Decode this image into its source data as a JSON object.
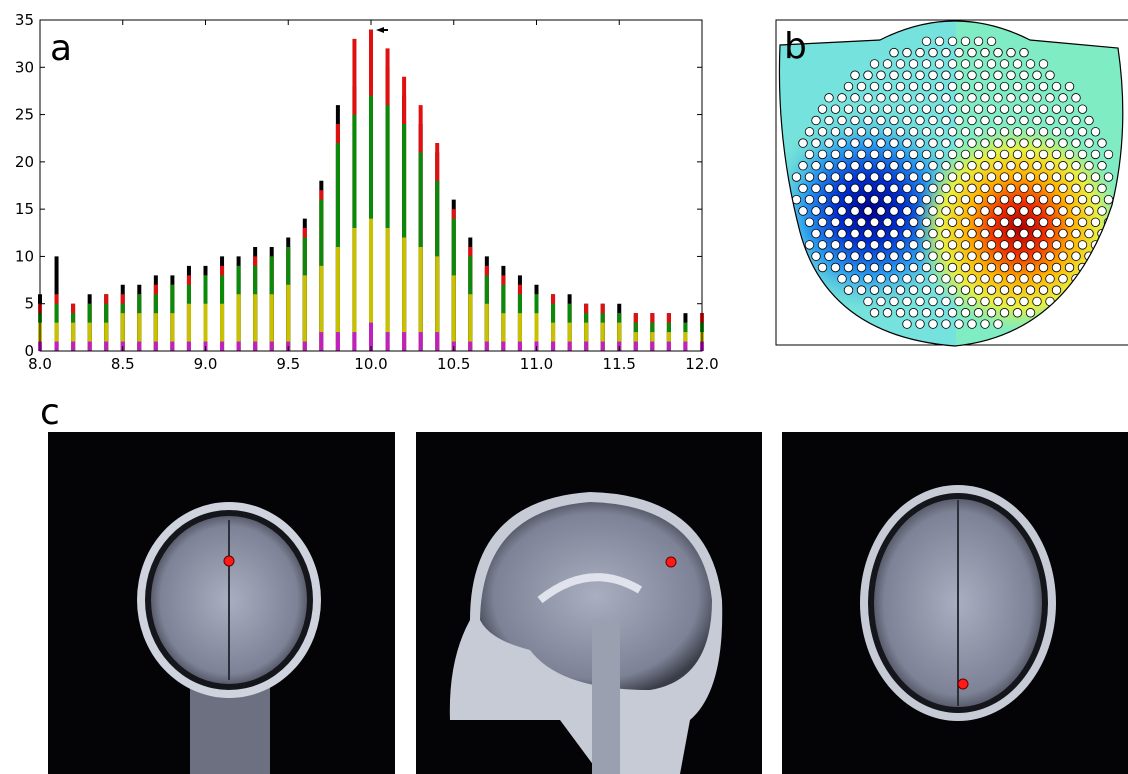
{
  "chart_data": {
    "type": "spectrum",
    "x": [
      8.0,
      8.1,
      8.2,
      8.3,
      8.4,
      8.5,
      8.6,
      8.7,
      8.8,
      8.9,
      9.0,
      9.1,
      9.2,
      9.3,
      9.4,
      9.5,
      9.6,
      9.7,
      9.8,
      9.9,
      10.0,
      10.1,
      10.2,
      10.3,
      10.4,
      10.5,
      10.6,
      10.7,
      10.8,
      10.9,
      11.0,
      11.1,
      11.2,
      11.3,
      11.4,
      11.5,
      11.6,
      11.7,
      11.8,
      11.9,
      12.0
    ],
    "series": [
      {
        "color": "#000000",
        "values": [
          6,
          10,
          5,
          6,
          6,
          7,
          7,
          8,
          8,
          9,
          9,
          10,
          10,
          11,
          11,
          12,
          14,
          18,
          26,
          28,
          31,
          30,
          27,
          24,
          21,
          16,
          12,
          10,
          9,
          8,
          7,
          6,
          6,
          5,
          5,
          5,
          4,
          4,
          4,
          4,
          4
        ]
      },
      {
        "color": "#e01010",
        "values": [
          5,
          6,
          5,
          5,
          6,
          6,
          6,
          7,
          7,
          8,
          8,
          9,
          9,
          10,
          10,
          11,
          13,
          17,
          24,
          33,
          34,
          32,
          29,
          26,
          22,
          15,
          11,
          9,
          8,
          7,
          6,
          6,
          5,
          5,
          5,
          4,
          4,
          4,
          4,
          3,
          4
        ]
      },
      {
        "color": "#0a8a0a",
        "values": [
          4,
          5,
          4,
          5,
          5,
          5,
          6,
          6,
          7,
          7,
          8,
          8,
          9,
          9,
          10,
          11,
          12,
          16,
          22,
          25,
          27,
          26,
          24,
          21,
          18,
          14,
          10,
          8,
          7,
          6,
          6,
          5,
          5,
          4,
          4,
          4,
          3,
          3,
          3,
          3,
          3
        ]
      },
      {
        "color": "#c8c000",
        "values": [
          3,
          3,
          3,
          3,
          3,
          4,
          4,
          4,
          4,
          5,
          5,
          5,
          6,
          6,
          6,
          7,
          8,
          9,
          11,
          13,
          14,
          13,
          12,
          11,
          10,
          8,
          6,
          5,
          4,
          4,
          4,
          3,
          3,
          3,
          3,
          3,
          2,
          2,
          2,
          2,
          2
        ]
      },
      {
        "color": "#c020c0",
        "values": [
          1,
          1,
          1,
          1,
          1,
          1,
          1,
          1,
          1,
          1,
          1,
          1,
          1,
          1,
          1,
          1,
          1,
          2,
          2,
          2,
          3,
          2,
          2,
          2,
          2,
          1,
          1,
          1,
          1,
          1,
          1,
          1,
          1,
          1,
          1,
          1,
          1,
          1,
          1,
          1,
          1
        ]
      }
    ],
    "xlim": [
      8.0,
      12.0
    ],
    "ylim": [
      0,
      35
    ],
    "xticks": [
      {
        "value": 8.0,
        "label": "8.0"
      },
      {
        "value": 8.5,
        "label": "8.5"
      },
      {
        "value": 9.0,
        "label": "9.0"
      },
      {
        "value": 9.5,
        "label": "9.5"
      },
      {
        "value": 10.0,
        "label": "10.0"
      },
      {
        "value": 10.5,
        "label": "10.5"
      },
      {
        "value": 11.0,
        "label": "11.0"
      },
      {
        "value": 11.5,
        "label": "11.5"
      },
      {
        "value": 12.0,
        "label": "12.0"
      }
    ],
    "yticks": [
      0,
      5,
      10,
      15,
      20,
      25,
      30,
      35
    ]
  },
  "panel_labels": [
    "a",
    "b",
    "c"
  ]
}
